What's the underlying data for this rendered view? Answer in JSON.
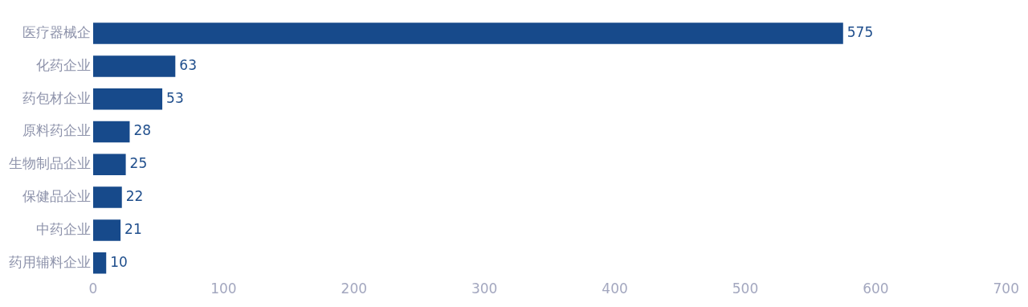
{
  "chart_data": {
    "type": "bar",
    "orientation": "horizontal",
    "categories": [
      "医疗器械企",
      "化药企业",
      "药包材企业",
      "原料药企业",
      "生物制品企业",
      "保健品企业",
      "中药企业",
      "药用辅料企业"
    ],
    "values": [
      575,
      63,
      53,
      28,
      25,
      22,
      21,
      10
    ],
    "color": "#174a8b",
    "xlim": [
      0,
      700
    ],
    "xticks": [
      0,
      100,
      200,
      300,
      400,
      500,
      600,
      700
    ],
    "grid": false,
    "data_labels": true
  }
}
